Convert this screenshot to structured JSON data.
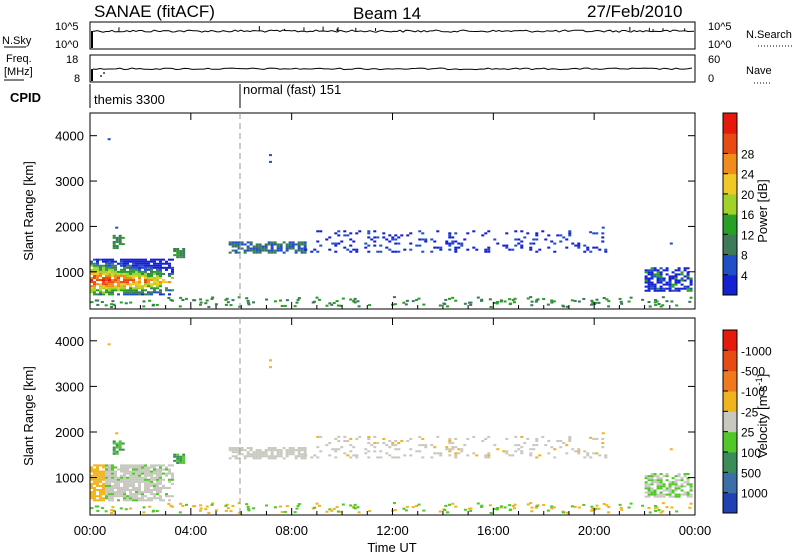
{
  "header": {
    "station": "SANAE (fitACF)",
    "beam": "Beam 14",
    "date": "27/Feb/2010"
  },
  "top_panels": {
    "nsky_label": "N.Sky",
    "nsky_ticks": [
      "10^5",
      "10^0"
    ],
    "nsearch_label": "N.Search",
    "nsearch_ticks": [
      "10^5",
      "10^0"
    ],
    "freq_label": "Freq.",
    "freq_unit": "[MHz]",
    "freq_ticks": [
      "18",
      "8"
    ],
    "nave_label": "Nave",
    "nave_ticks": [
      "60",
      "0"
    ],
    "cpid_label": "CPID",
    "cpid_modes": [
      "themis 3300",
      "normal (fast) 151"
    ]
  },
  "chart_data": [
    {
      "type": "heatmap",
      "name": "power",
      "xlabel": "",
      "ylabel": "Slant Range [km]",
      "x_ticks": [
        "00:00",
        "04:00",
        "08:00",
        "12:00",
        "16:00",
        "20:00",
        "00:00"
      ],
      "x_range_hours": [
        0,
        24
      ],
      "y_ticks": [
        1000,
        2000,
        3000,
        4000
      ],
      "ylim": [
        180,
        4500
      ],
      "colorbar": {
        "label": "Power [dB]",
        "ticks": [
          4,
          8,
          12,
          16,
          20,
          24,
          28
        ],
        "colors": [
          "#1420d2",
          "#2050c8",
          "#3c7a5a",
          "#28a028",
          "#a0d228",
          "#f0c828",
          "#f08c1e",
          "#e84a14",
          "#e61a0a"
        ]
      },
      "regions": [
        {
          "t0": 0.0,
          "t1": 3.3,
          "r0": 500,
          "r1": 1250,
          "level": "high"
        },
        {
          "t0": 0.9,
          "t1": 1.3,
          "r0": 1500,
          "r1": 1800,
          "level": "mid"
        },
        {
          "t0": 3.3,
          "t1": 3.7,
          "r0": 1300,
          "r1": 1500,
          "level": "mid"
        },
        {
          "t0": 5.5,
          "t1": 8.5,
          "r0": 1400,
          "r1": 1650,
          "level": "low"
        },
        {
          "t0": 8.5,
          "t1": 20.5,
          "r0": 1400,
          "r1": 1900,
          "level": "low-scatter"
        },
        {
          "t0": 22.0,
          "t1": 24.0,
          "r0": 600,
          "r1": 1100,
          "level": "low"
        }
      ]
    },
    {
      "type": "heatmap",
      "name": "velocity",
      "xlabel": "Time UT",
      "ylabel": "Slant Range [km]",
      "x_ticks": [
        "00:00",
        "04:00",
        "08:00",
        "12:00",
        "16:00",
        "20:00",
        "00:00"
      ],
      "x_range_hours": [
        0,
        24
      ],
      "y_ticks": [
        1000,
        2000,
        3000,
        4000
      ],
      "ylim": [
        180,
        4500
      ],
      "colorbar": {
        "label": "Velocity [m s^-1]",
        "ticks": [
          "1000",
          "500",
          "100",
          "25",
          "-25",
          "-100",
          "-500",
          "-1000"
        ],
        "colors": [
          "#2040b4",
          "#3c6eaa",
          "#3c8c5a",
          "#50c82a",
          "#c8c8c0",
          "#f0b41e",
          "#f0781e",
          "#e84a14",
          "#e61a0a"
        ]
      }
    }
  ]
}
